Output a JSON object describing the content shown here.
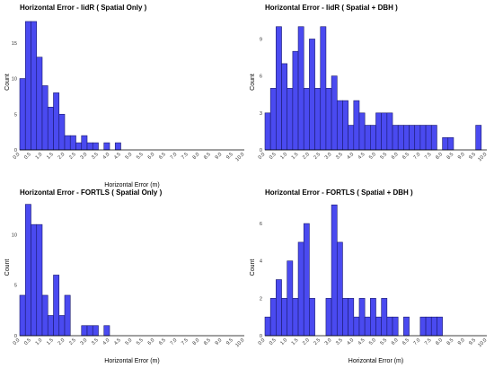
{
  "chart_data": [
    {
      "type": "bar",
      "title": "Horizontal Error - lidR ( Spatial Only )",
      "xlabel": "Horizontal Error (m)",
      "ylabel": "Count",
      "xlim": [
        0,
        10
      ],
      "ylim": [
        0,
        19
      ],
      "bin_width": 0.25,
      "x_ticks": [
        "0.0",
        "0.5",
        "1.0",
        "1.5",
        "2.0",
        "2.5",
        "3.0",
        "3.5",
        "4.0",
        "4.5",
        "5.0",
        "5.5",
        "6.0",
        "6.5",
        "7.0",
        "7.5",
        "8.0",
        "8.5",
        "9.0",
        "9.5",
        "10.0"
      ],
      "y_ticks": [
        "0",
        "5",
        "10",
        "15"
      ],
      "values": [
        10,
        18,
        18,
        13,
        9,
        6,
        8,
        5,
        2,
        2,
        1,
        2,
        1,
        1,
        0,
        1,
        0,
        1,
        0,
        0,
        0,
        0,
        0,
        0,
        0,
        0,
        0,
        0,
        0,
        0,
        0,
        0,
        0,
        0,
        0,
        0,
        0,
        0,
        0,
        0
      ],
      "grid": false
    },
    {
      "type": "bar",
      "title": "Horizontal Error - lidR ( Spatial + DBH )",
      "xlabel": "",
      "ylabel": "Count",
      "xlim": [
        0,
        10
      ],
      "ylim": [
        0,
        11
      ],
      "bin_width": 0.25,
      "x_ticks": [
        "0.0",
        "0.5",
        "1.0",
        "1.5",
        "2.0",
        "2.5",
        "3.0",
        "3.5",
        "4.0",
        "4.5",
        "5.0",
        "5.5",
        "6.0",
        "6.5",
        "7.0",
        "7.5",
        "8.0",
        "8.5",
        "9.0",
        "9.5",
        "10.0"
      ],
      "y_ticks": [
        "0",
        "3",
        "6",
        "9"
      ],
      "values": [
        3,
        5,
        10,
        7,
        5,
        8,
        10,
        5,
        9,
        5,
        10,
        5,
        6,
        4,
        4,
        2,
        4,
        3,
        2,
        2,
        3,
        3,
        3,
        2,
        2,
        2,
        2,
        2,
        2,
        2,
        2,
        0,
        1,
        1,
        0,
        0,
        0,
        0,
        2,
        0
      ],
      "grid": false
    },
    {
      "type": "bar",
      "title": "Horizontal Error - FORTLS ( Spatial Only )",
      "xlabel": "Horizontal Error (m)",
      "ylabel": "Count",
      "xlim": [
        0,
        10
      ],
      "ylim": [
        0,
        13.5
      ],
      "bin_width": 0.25,
      "x_ticks": [
        "0.0",
        "0.5",
        "1.0",
        "1.5",
        "2.0",
        "2.5",
        "3.0",
        "3.5",
        "4.0",
        "4.5",
        "5.0",
        "5.5",
        "6.0",
        "6.5",
        "7.0",
        "7.5",
        "8.0",
        "8.5",
        "9.0",
        "9.5",
        "10.0"
      ],
      "y_ticks": [
        "0",
        "5",
        "10"
      ],
      "values": [
        4,
        13,
        11,
        11,
        4,
        2,
        6,
        2,
        4,
        0,
        0,
        1,
        1,
        1,
        0,
        1,
        0,
        0,
        0,
        0,
        0,
        0,
        0,
        0,
        0,
        0,
        0,
        0,
        0,
        0,
        0,
        0,
        0,
        0,
        0,
        0,
        0,
        0,
        0,
        0
      ],
      "grid": false
    },
    {
      "type": "bar",
      "title": "Horizontal Error - FORTLS ( Spatial + DBH )",
      "xlabel": "Horizontal Error (m)",
      "ylabel": "Count",
      "xlim": [
        0,
        10
      ],
      "ylim": [
        0,
        7.3
      ],
      "bin_width": 0.25,
      "x_ticks": [
        "0.0",
        "0.5",
        "1.0",
        "1.5",
        "2.0",
        "2.5",
        "3.0",
        "3.5",
        "4.0",
        "4.5",
        "5.0",
        "5.5",
        "6.0",
        "6.5",
        "7.0",
        "7.5",
        "8.0",
        "8.5",
        "9.0",
        "9.5",
        "10.0"
      ],
      "y_ticks": [
        "0",
        "2",
        "4",
        "6"
      ],
      "values": [
        1,
        2,
        3,
        2,
        4,
        2,
        5,
        6,
        2,
        0,
        0,
        2,
        7,
        5,
        2,
        2,
        1,
        2,
        1,
        2,
        1,
        2,
        1,
        1,
        0,
        1,
        0,
        0,
        1,
        1,
        1,
        1,
        0,
        0,
        0,
        0,
        0,
        0,
        0,
        0
      ],
      "grid": false
    }
  ]
}
